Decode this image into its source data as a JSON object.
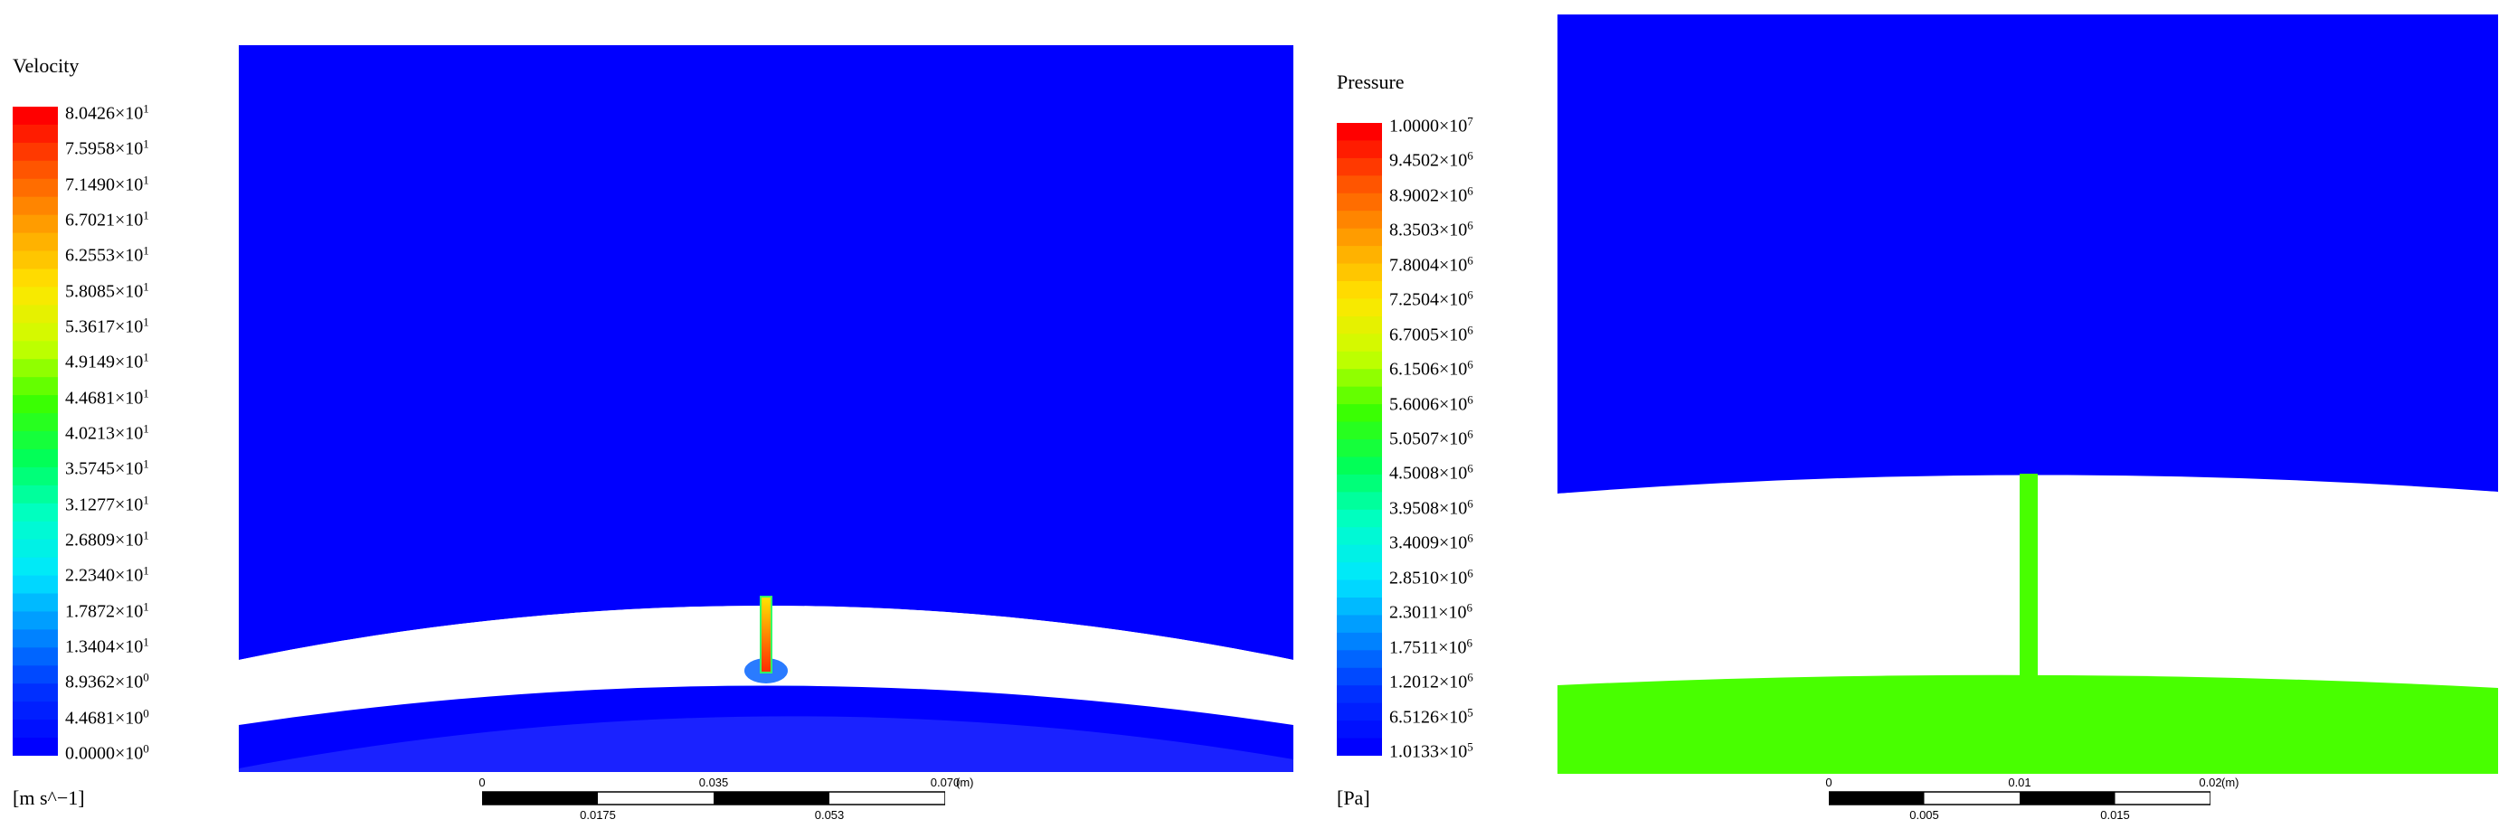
{
  "panels": {
    "velocity": {
      "legend_title": "Velocity",
      "units": "[m s^−1]",
      "ticks": [
        {
          "mantissa": "8.0426",
          "exponent": "1"
        },
        {
          "mantissa": "7.5958",
          "exponent": "1"
        },
        {
          "mantissa": "7.1490",
          "exponent": "1"
        },
        {
          "mantissa": "6.7021",
          "exponent": "1"
        },
        {
          "mantissa": "6.2553",
          "exponent": "1"
        },
        {
          "mantissa": "5.8085",
          "exponent": "1"
        },
        {
          "mantissa": "5.3617",
          "exponent": "1"
        },
        {
          "mantissa": "4.9149",
          "exponent": "1"
        },
        {
          "mantissa": "4.4681",
          "exponent": "1"
        },
        {
          "mantissa": "4.0213",
          "exponent": "1"
        },
        {
          "mantissa": "3.5745",
          "exponent": "1"
        },
        {
          "mantissa": "3.1277",
          "exponent": "1"
        },
        {
          "mantissa": "2.6809",
          "exponent": "1"
        },
        {
          "mantissa": "2.2340",
          "exponent": "1"
        },
        {
          "mantissa": "1.7872",
          "exponent": "1"
        },
        {
          "mantissa": "1.3404",
          "exponent": "1"
        },
        {
          "mantissa": "8.9362",
          "exponent": "0"
        },
        {
          "mantissa": "4.4681",
          "exponent": "0"
        },
        {
          "mantissa": "0.0000",
          "exponent": "0"
        }
      ],
      "scalebar": {
        "top_labels": [
          "0",
          "0.035",
          "0.070"
        ],
        "bottom_labels": [
          "0.0175",
          "0.053"
        ],
        "units": "(m)"
      }
    },
    "pressure": {
      "legend_title": "Pressure",
      "units": "[Pa]",
      "ticks": [
        {
          "mantissa": "1.0000",
          "exponent": "7"
        },
        {
          "mantissa": "9.4502",
          "exponent": "6"
        },
        {
          "mantissa": "8.9002",
          "exponent": "6"
        },
        {
          "mantissa": "8.3503",
          "exponent": "6"
        },
        {
          "mantissa": "7.8004",
          "exponent": "6"
        },
        {
          "mantissa": "7.2504",
          "exponent": "6"
        },
        {
          "mantissa": "6.7005",
          "exponent": "6"
        },
        {
          "mantissa": "6.1506",
          "exponent": "6"
        },
        {
          "mantissa": "5.6006",
          "exponent": "6"
        },
        {
          "mantissa": "5.0507",
          "exponent": "6"
        },
        {
          "mantissa": "4.5008",
          "exponent": "6"
        },
        {
          "mantissa": "3.9508",
          "exponent": "6"
        },
        {
          "mantissa": "3.4009",
          "exponent": "6"
        },
        {
          "mantissa": "2.8510",
          "exponent": "6"
        },
        {
          "mantissa": "2.3011",
          "exponent": "6"
        },
        {
          "mantissa": "1.7511",
          "exponent": "6"
        },
        {
          "mantissa": "1.2012",
          "exponent": "6"
        },
        {
          "mantissa": "6.5126",
          "exponent": "5"
        },
        {
          "mantissa": "1.0133",
          "exponent": "5"
        }
      ],
      "scalebar": {
        "top_labels": [
          "0",
          "0.01",
          "0.02"
        ],
        "bottom_labels": [
          "0.005",
          "0.015"
        ],
        "units": "(m)"
      }
    }
  },
  "colors": {
    "background": "#0000ff",
    "secondary_region": "#1a22ff",
    "pressure_high_region": "#48ff00",
    "legend_stops": [
      "#ff0000",
      "#ff5a00",
      "#ffa500",
      "#ffe600",
      "#c8ff00",
      "#3cff00",
      "#00ff5a",
      "#00ffc8",
      "#00e6ff",
      "#008cff",
      "#0032ff",
      "#0000ff"
    ]
  }
}
